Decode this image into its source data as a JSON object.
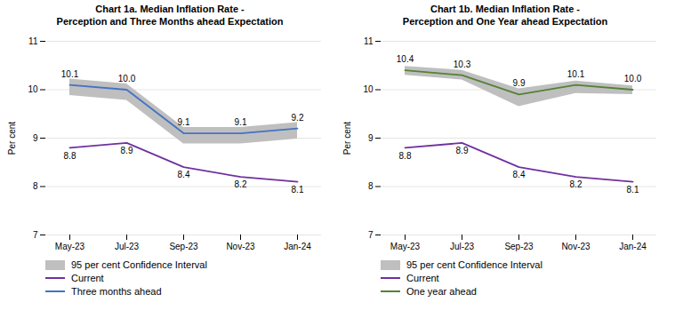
{
  "chart_data": [
    {
      "type": "line",
      "title": "Chart 1a. Median Inflation Rate -\nPerception and Three Months ahead Expectation",
      "categories": [
        "May-23",
        "Jul-23",
        "Sep-23",
        "Nov-23",
        "Jan-24"
      ],
      "series": [
        {
          "name": "95 per cent Confidence Interval",
          "type": "area",
          "color": "#bfbfbf",
          "lower": [
            9.88,
            9.78,
            8.88,
            8.88,
            8.98
          ],
          "upper": [
            10.22,
            10.12,
            9.22,
            9.22,
            9.32
          ]
        },
        {
          "name": "Current",
          "type": "line",
          "color": "#7030a0",
          "values": [
            8.8,
            8.9,
            8.4,
            8.2,
            8.1
          ],
          "value_labels": [
            "8.8",
            "8.9",
            "8.4",
            "8.2",
            "8.1"
          ]
        },
        {
          "name": "Three months ahead",
          "type": "line",
          "color": "#4472c4",
          "values": [
            10.1,
            10.0,
            9.1,
            9.1,
            9.2
          ],
          "value_labels": [
            "10.1",
            "10.0",
            "9.1",
            "9.1",
            "9.2"
          ]
        }
      ],
      "ylabel": "Per cent",
      "ylim": [
        7,
        11
      ],
      "yticks": [
        7,
        8,
        9,
        10,
        11
      ],
      "grid": true,
      "data_labels": true,
      "legend": "lower left"
    },
    {
      "type": "line",
      "title": "Chart 1b. Median Inflation Rate -\nPerception and One Year ahead Expectation",
      "categories": [
        "May-23",
        "Jul-23",
        "Sep-23",
        "Nov-23",
        "Jan-24"
      ],
      "series": [
        {
          "name": "95 per cent Confidence Interval",
          "type": "area",
          "color": "#bfbfbf",
          "lower": [
            10.3,
            10.2,
            9.65,
            9.92,
            9.9
          ],
          "upper": [
            10.48,
            10.4,
            10.02,
            10.18,
            10.08
          ]
        },
        {
          "name": "Current",
          "type": "line",
          "color": "#7030a0",
          "values": [
            8.8,
            8.9,
            8.4,
            8.2,
            8.1
          ],
          "value_labels": [
            "8.8",
            "8.9",
            "8.4",
            "8.2",
            "8.1"
          ]
        },
        {
          "name": "One year ahead",
          "type": "line",
          "color": "#548235",
          "values": [
            10.4,
            10.3,
            9.9,
            10.1,
            10.0
          ],
          "value_labels": [
            "10.4",
            "10.3",
            "9.9",
            "10.1",
            "10.0"
          ]
        }
      ],
      "ylabel": "Per cent",
      "ylim": [
        7,
        11
      ],
      "yticks": [
        7,
        8,
        9,
        10,
        11
      ],
      "grid": true,
      "data_labels": true,
      "legend": "lower left"
    }
  ]
}
